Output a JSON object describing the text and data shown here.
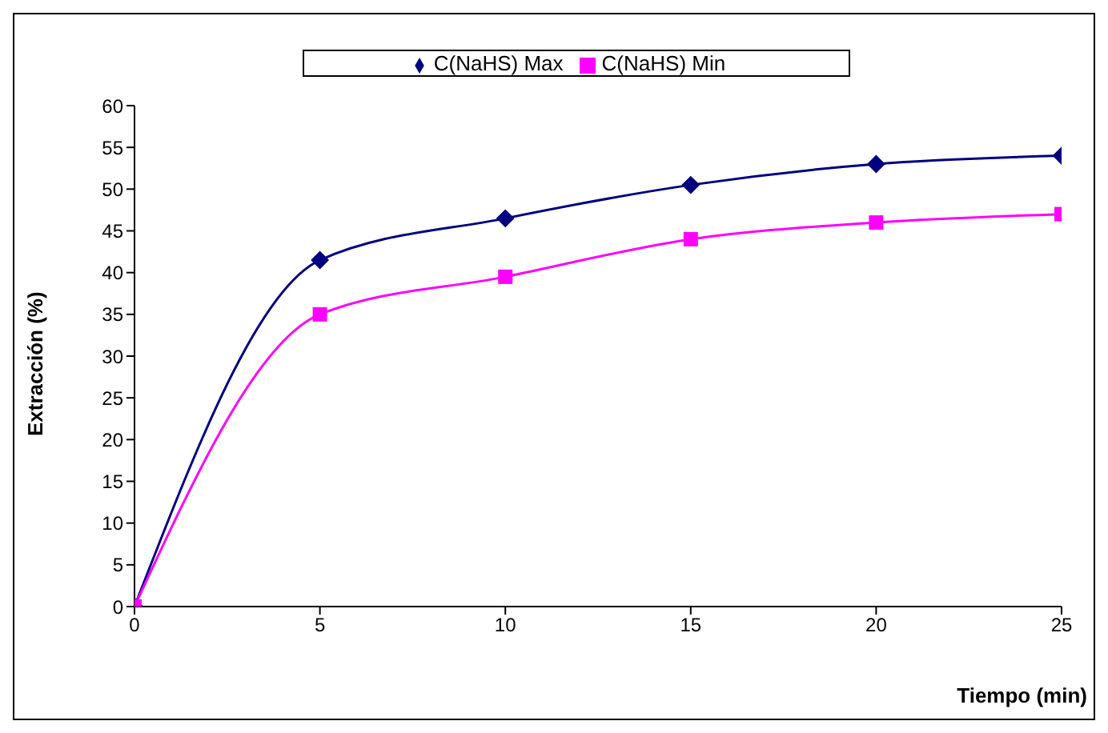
{
  "chart_data": {
    "type": "line",
    "xlabel": "Tiempo (min)",
    "ylabel": "Extracción (%)",
    "x": [
      0,
      5,
      10,
      15,
      20,
      25
    ],
    "series": [
      {
        "name": "C(NaHS) Max",
        "color": "#000080",
        "marker": "diamond",
        "values": [
          0,
          41.5,
          46.5,
          50.5,
          53,
          54
        ]
      },
      {
        "name": "C(NaHS) Min",
        "color": "#ff00ff",
        "marker": "square",
        "values": [
          0,
          35,
          39.5,
          44,
          46,
          47
        ]
      }
    ],
    "xlim": [
      0,
      25
    ],
    "xticks": [
      0,
      5,
      10,
      15,
      20,
      25
    ],
    "ylim": [
      0,
      60
    ],
    "yticks": [
      0,
      5,
      10,
      15,
      20,
      25,
      30,
      35,
      40,
      45,
      50,
      55,
      60
    ],
    "grid": false,
    "legend": "top",
    "line_style": "solid"
  }
}
